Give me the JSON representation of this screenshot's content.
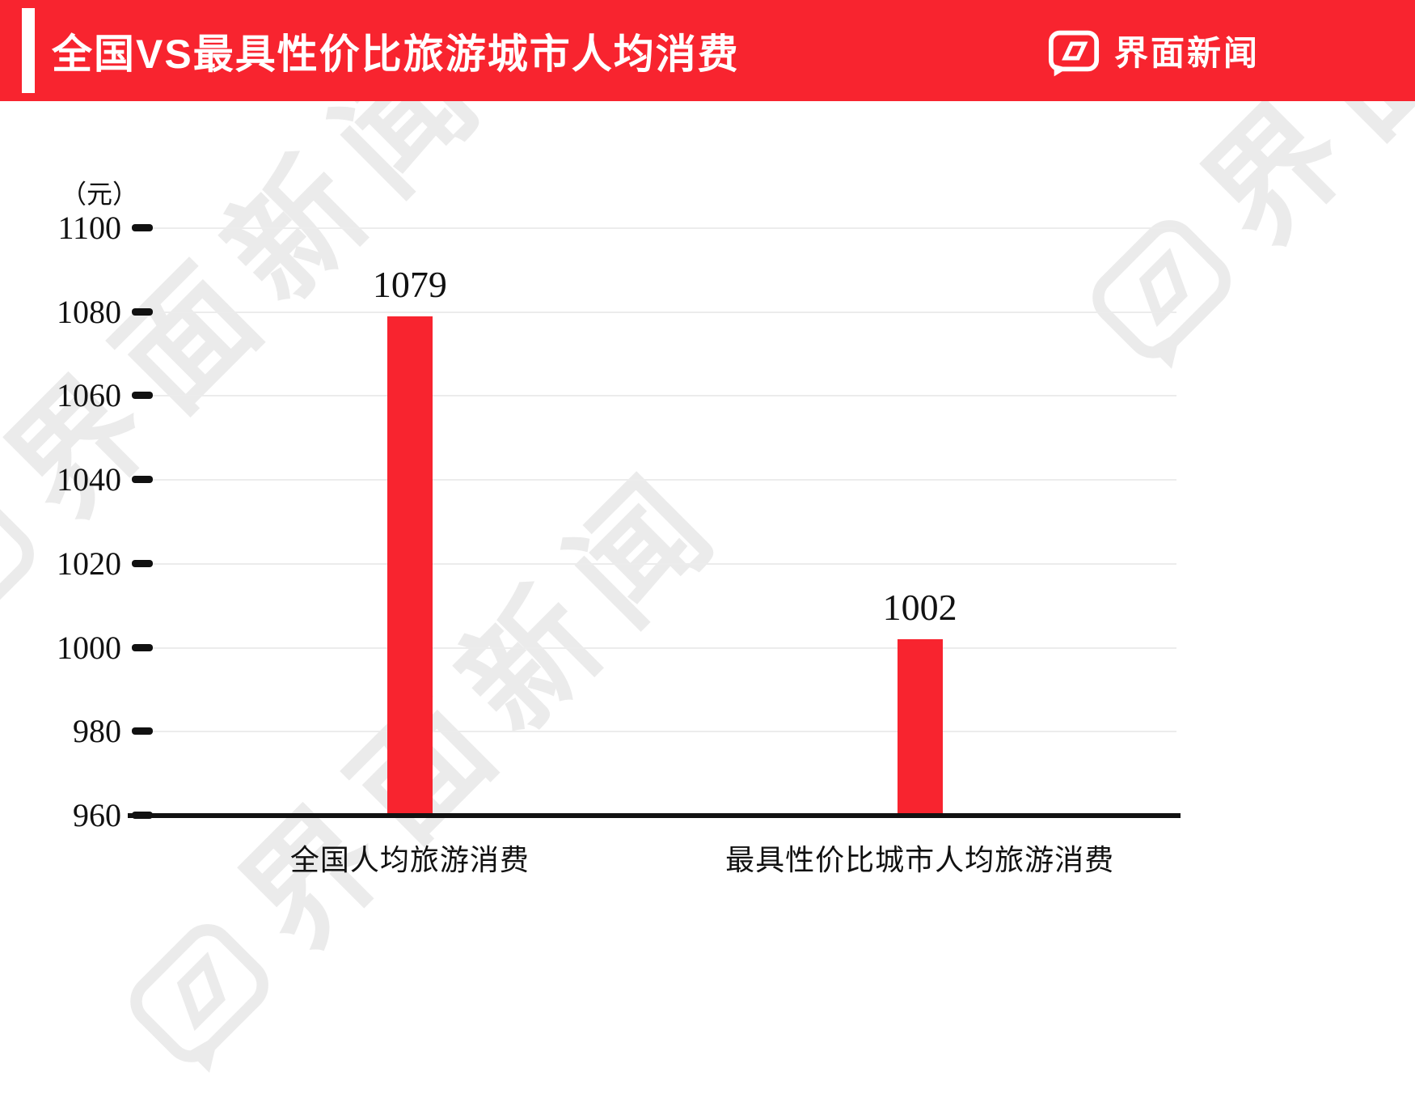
{
  "header": {
    "title": "全国VS最具性价比旅游城市人均消费",
    "brand": "界面新闻",
    "accent_color": "#f8242f"
  },
  "watermark": {
    "text": "界面新闻"
  },
  "chart_data": {
    "type": "bar",
    "title": "全国VS最具性价比旅游城市人均消费",
    "unit_label": "（元）",
    "categories": [
      "全国人均旅游消费",
      "最具性价比城市人均旅游消费"
    ],
    "values": [
      1079,
      1002
    ],
    "ylim": [
      960,
      1100
    ],
    "yticks": [
      1100,
      1080,
      1060,
      1040,
      1020,
      1000,
      980,
      960
    ],
    "bar_color": "#f8242f",
    "grid": true,
    "xlabel": "",
    "ylabel": "（元）"
  }
}
